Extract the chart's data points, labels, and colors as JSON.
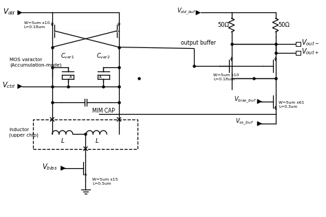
{
  "fig_w": 4.74,
  "fig_h": 3.16,
  "dpi": 100,
  "bg": "#ffffff",
  "lw": 0.9,
  "labels": {
    "Vdd": "$V_{dd}$",
    "Vdd_buf": "$V_{dd\\_buf}$",
    "Vout_m": "$V_{out-}$",
    "Vout_p": "$V_{out+}$",
    "Vctrl": "$V_{ctrl}$",
    "Vbias": "$V_{bias}$",
    "Vbias_buf": "$V_{bias\\_buf}$",
    "Vss_buf": "$V_{ss\\_buf}$",
    "Cver1": "$C_{ver1}$",
    "Cver2": "$C_{ver2}$",
    "wl1": "W=5um x10\nL=0.18um",
    "wl2": "W=5um x10\nL=0.18um",
    "wl3": "W=5um x15\nL=0.5um",
    "wl4": "W=5um x61\nL=0.3um",
    "out_buf": "output buffer",
    "mim": "MIM CAP",
    "ind": "Inductor\n(upper chip)",
    "mos_var": "MOS varactor\n(Accumulation-mode)",
    "L1": "L",
    "L2": "L",
    "R1": "50Ω",
    "R2": "50Ω"
  }
}
